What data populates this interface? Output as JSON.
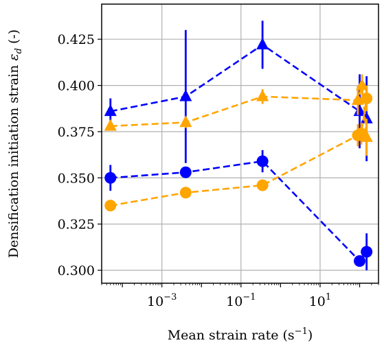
{
  "chart_data": {
    "type": "line",
    "xscale": "log",
    "xlim": [
      3e-05,
      300
    ],
    "ylim": [
      0.293,
      0.444
    ],
    "grid": true,
    "legend": "none",
    "xlabel_text": "Mean strain rate (s",
    "xlabel_sup": "−1",
    "xlabel_close": ")",
    "ylabel_text": "Densification initiation strain ",
    "ylabel_sym": "ε",
    "ylabel_sub": "d",
    "ylabel_unit": " (-)",
    "x_ticks": [
      {
        "value": 0.001,
        "base": "10",
        "exp": "−3"
      },
      {
        "value": 0.1,
        "base": "10",
        "exp": "−1"
      },
      {
        "value": 10,
        "base": "10",
        "exp": "1"
      }
    ],
    "y_ticks": [
      {
        "value": 0.3,
        "label": "0.300"
      },
      {
        "value": 0.325,
        "label": "0.325"
      },
      {
        "value": 0.35,
        "label": "0.350"
      },
      {
        "value": 0.375,
        "label": "0.375"
      },
      {
        "value": 0.4,
        "label": "0.400"
      },
      {
        "value": 0.425,
        "label": "0.425"
      }
    ],
    "series": [
      {
        "color": "#0000ff",
        "marker": "triangle",
        "points": [
          {
            "x": 5e-05,
            "y": 0.386,
            "err": 0.007
          },
          {
            "x": 0.004,
            "y": 0.394,
            "err": 0.036
          },
          {
            "x": 0.35,
            "y": 0.422,
            "err": 0.013
          },
          {
            "x": 100,
            "y": 0.386,
            "err": 0.02
          },
          {
            "x": 150,
            "y": 0.382,
            "err": 0.023
          }
        ]
      },
      {
        "color": "#ffa500",
        "marker": "triangle",
        "points": [
          {
            "x": 5e-05,
            "y": 0.378,
            "err": 0.001
          },
          {
            "x": 0.004,
            "y": 0.38,
            "err": 0.003
          },
          {
            "x": 0.35,
            "y": 0.394,
            "err": 0.004
          },
          {
            "x": 90,
            "y": 0.392,
            "err": 0.008
          },
          {
            "x": 115,
            "y": 0.4,
            "err": 0.006
          },
          {
            "x": 150,
            "y": 0.372,
            "err": 0.01
          }
        ]
      },
      {
        "color": "#0000ff",
        "marker": "circle",
        "points": [
          {
            "x": 5e-05,
            "y": 0.35,
            "err": 0.007
          },
          {
            "x": 0.004,
            "y": 0.353,
            "err": 0.003
          },
          {
            "x": 0.35,
            "y": 0.359,
            "err": 0.006
          },
          {
            "x": 100,
            "y": 0.305,
            "err": 0.003
          },
          {
            "x": 150,
            "y": 0.31,
            "err": 0.01
          }
        ]
      },
      {
        "color": "#ffa500",
        "marker": "circle",
        "points": [
          {
            "x": 5e-05,
            "y": 0.335,
            "err": 0.002
          },
          {
            "x": 0.004,
            "y": 0.342,
            "err": 0.003
          },
          {
            "x": 0.35,
            "y": 0.346,
            "err": 0.003
          },
          {
            "x": 90,
            "y": 0.373,
            "err": 0.006
          },
          {
            "x": 110,
            "y": 0.374,
            "err": 0.006
          },
          {
            "x": 150,
            "y": 0.393,
            "err": 0.007
          }
        ]
      }
    ]
  }
}
